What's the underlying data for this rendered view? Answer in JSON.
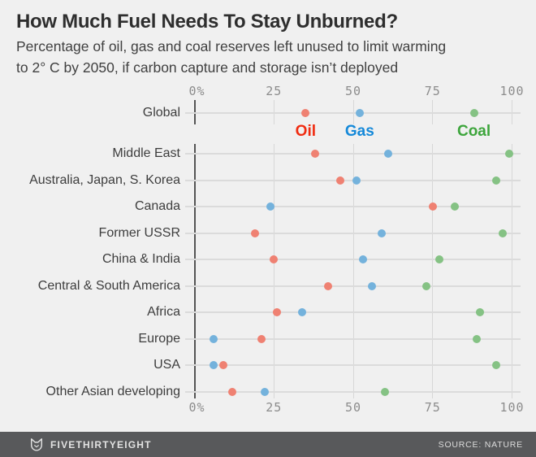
{
  "header": {
    "title": "How Much Fuel Needs To Stay Unburned?",
    "subtitle_line1": "Percentage of oil, gas and coal reserves left unused to limit warming",
    "subtitle_line2": "to 2° C by 2050, if carbon capture and storage isn’t deployed"
  },
  "chart_data": {
    "type": "scatter",
    "title": "How Much Fuel Needs To Stay Unburned?",
    "xlabel": "",
    "ylabel": "",
    "unit": "percent",
    "axis": {
      "min": 0,
      "max": 100,
      "ticks": [
        0,
        25,
        50,
        75,
        100
      ],
      "tick_labels": [
        "0%",
        "25",
        "50",
        "75",
        "100"
      ],
      "grid": true,
      "tick_labels_shown": "top and bottom"
    },
    "series_labels": {
      "oil": "Oil",
      "gas": "Gas",
      "coal": "Coal"
    },
    "legend_position": "below Global row, labels under each Global dot",
    "colors": {
      "oil": "#f02c11",
      "gas": "#1589d9",
      "coal": "#3da53c",
      "oil_dot": "#ef8172",
      "gas_dot": "#74b2dc",
      "coal_dot": "#85c284",
      "background": "#f0f0f0",
      "gridline": "#d7d7d7",
      "zero_axis": "#545454",
      "footer_bar": "#58595b"
    },
    "rows": [
      {
        "label": "Global",
        "oil": 35,
        "gas": 52,
        "coal": 88
      },
      {
        "label": "Middle East",
        "oil": 38,
        "gas": 61,
        "coal": 99
      },
      {
        "label": "Australia, Japan, S. Korea",
        "oil": 46,
        "gas": 51,
        "coal": 95
      },
      {
        "label": "Canada",
        "oil": 75,
        "gas": 24,
        "coal": 82
      },
      {
        "label": "Former USSR",
        "oil": 19,
        "gas": 59,
        "coal": 97
      },
      {
        "label": "China & India",
        "oil": 25,
        "gas": 53,
        "coal": 77
      },
      {
        "label": "Central & South America",
        "oil": 42,
        "gas": 56,
        "coal": 73
      },
      {
        "label": "Africa",
        "oil": 26,
        "gas": 34,
        "coal": 90
      },
      {
        "label": "Europe",
        "oil": 21,
        "gas": 6,
        "coal": 89
      },
      {
        "label": "USA",
        "oil": 9,
        "gas": 6,
        "coal": 95
      },
      {
        "label": "Other Asian developing",
        "oil": 12,
        "gas": 22,
        "coal": 60
      }
    ]
  },
  "footer": {
    "brand": "FIVETHIRTYEIGHT",
    "source": "SOURCE: NATURE",
    "logo": "fivethirtyeight-fox-icon"
  }
}
